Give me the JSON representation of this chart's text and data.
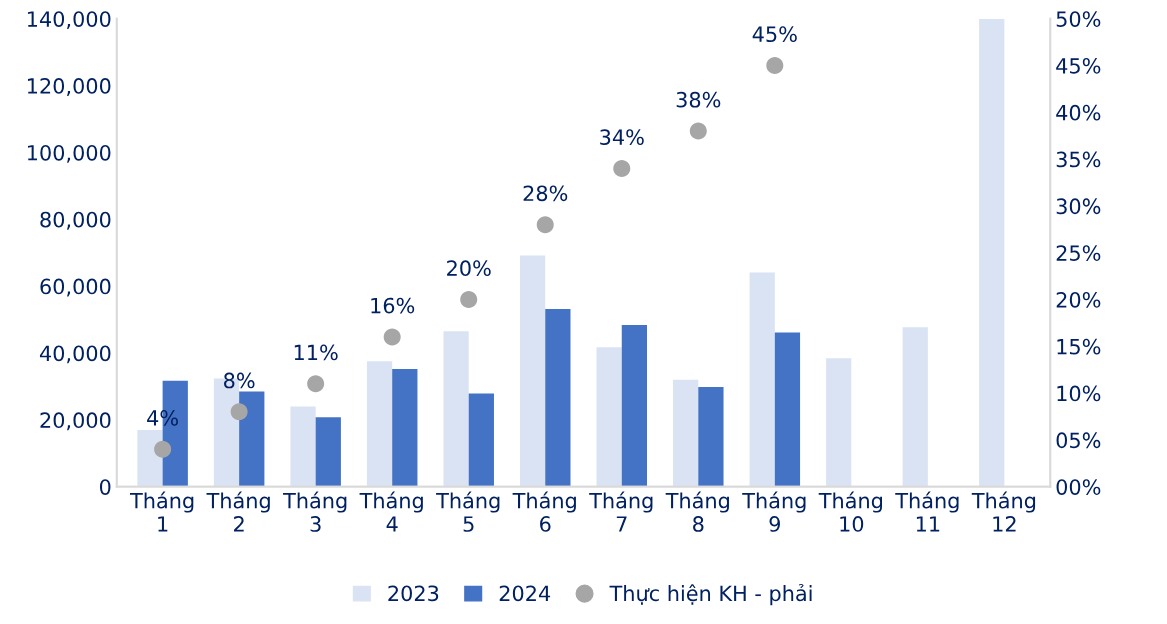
{
  "chart_data": {
    "type": "bar",
    "categories": [
      "Tháng\n1",
      "Tháng\n2",
      "Tháng\n3",
      "Tháng\n4",
      "Tháng\n5",
      "Tháng\n6",
      "Tháng\n7",
      "Tháng\n8",
      "Tháng\n9",
      "Tháng\n10",
      "Tháng\n11",
      "Tháng\n12"
    ],
    "series": [
      {
        "name": "2023",
        "color": "#dae3f3",
        "values": [
          17000,
          32400,
          24000,
          37500,
          46500,
          69200,
          41700,
          32000,
          64100,
          38400,
          47700,
          140000
        ]
      },
      {
        "name": "2024",
        "color": "#4472c4",
        "values": [
          31700,
          28500,
          20800,
          35200,
          27900,
          53200,
          48400,
          29800,
          46100,
          null,
          null,
          null
        ]
      },
      {
        "name": "Thực hiện KH - phải",
        "type": "scatter",
        "axis": "y2",
        "color": "#a6a6a6",
        "marker": "circle",
        "values": [
          4,
          8,
          11,
          16,
          20,
          28,
          34,
          38,
          45,
          null,
          null,
          null
        ],
        "value_labels": [
          "4%",
          "8%",
          "11%",
          "16%",
          "20%",
          "28%",
          "34%",
          "38%",
          "45%",
          null,
          null,
          null
        ]
      }
    ],
    "ylim": [
      0,
      140000
    ],
    "yticks": [
      {
        "value": 0,
        "label": "0"
      },
      {
        "value": 20000,
        "label": "20,000"
      },
      {
        "value": 40000,
        "label": "40,000"
      },
      {
        "value": 60000,
        "label": "60,000"
      },
      {
        "value": 80000,
        "label": "80,000"
      },
      {
        "value": 100000,
        "label": "100,000"
      },
      {
        "value": 120000,
        "label": "120,000"
      },
      {
        "value": 140000,
        "label": "140,000"
      }
    ],
    "y2lim": [
      0,
      50
    ],
    "y2ticks": [
      {
        "value": 0,
        "label": "00%"
      },
      {
        "value": 5,
        "label": "05%"
      },
      {
        "value": 10,
        "label": "10%"
      },
      {
        "value": 15,
        "label": "15%"
      },
      {
        "value": 20,
        "label": "20%"
      },
      {
        "value": 25,
        "label": "25%"
      },
      {
        "value": 30,
        "label": "30%"
      },
      {
        "value": 35,
        "label": "35%"
      },
      {
        "value": 40,
        "label": "40%"
      },
      {
        "value": 45,
        "label": "45%"
      },
      {
        "value": 50,
        "label": "50%"
      }
    ],
    "grid": false,
    "legend": "bottom"
  }
}
